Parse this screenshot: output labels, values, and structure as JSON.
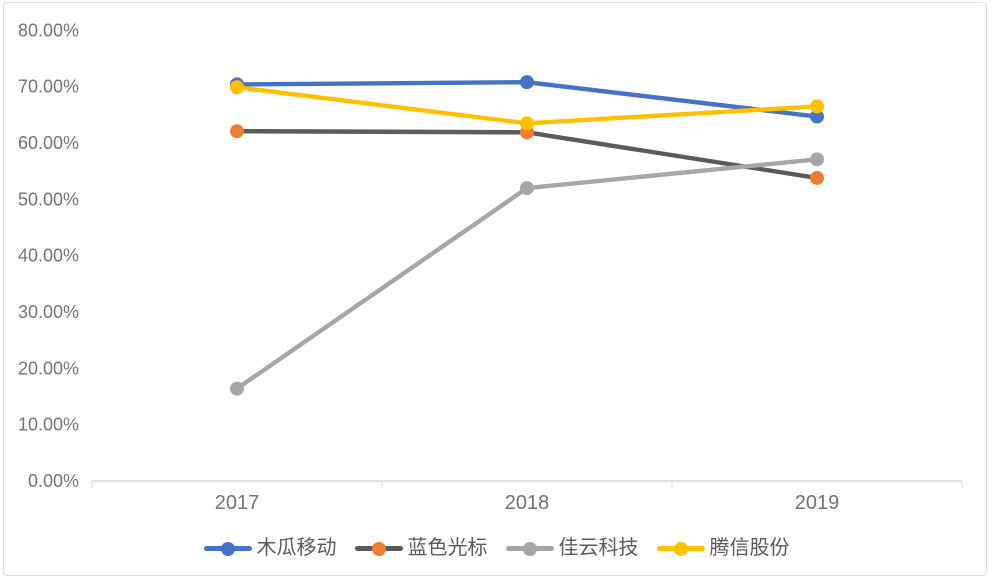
{
  "chart_data": {
    "type": "line",
    "title": "",
    "categories": [
      "2017",
      "2018",
      "2019"
    ],
    "series": [
      {
        "name": "木瓜移动",
        "line_color": "#4472C4",
        "marker_color": "#4472C4",
        "values": [
          70.4,
          70.8,
          64.7
        ]
      },
      {
        "name": "蓝色光标",
        "line_color": "#5A5A5A",
        "marker_color": "#ED7D31",
        "values": [
          62.1,
          61.9,
          53.8
        ]
      },
      {
        "name": "佳云科技",
        "line_color": "#A6A6A6",
        "marker_color": "#A6A6A6",
        "values": [
          16.4,
          52.0,
          57.1
        ]
      },
      {
        "name": "腾信股份",
        "line_color": "#FFC000",
        "marker_color": "#FFC000",
        "values": [
          69.9,
          63.5,
          66.5
        ]
      }
    ],
    "y_axis": {
      "min": 0,
      "max": 80,
      "step": 10,
      "unit": "%",
      "tick_labels": [
        "0.00%",
        "10.00%",
        "20.00%",
        "30.00%",
        "40.00%",
        "50.00%",
        "60.00%",
        "70.00%",
        "80.00%"
      ]
    },
    "x_axis": {
      "tick_labels": [
        "2017",
        "2018",
        "2019"
      ]
    },
    "legend_position": "bottom",
    "grid": false
  },
  "colors": {
    "axis_line": "#D9D9D9",
    "axis_text": "#737373",
    "legend_text": "#595959",
    "frame_border": "#DCDCDC",
    "background": "#FFFFFF"
  }
}
